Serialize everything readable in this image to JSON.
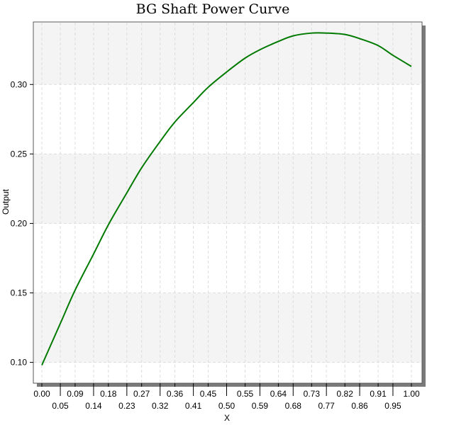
{
  "chart_data": {
    "type": "line",
    "title": "BG Shaft Power Curve",
    "xlabel": "X",
    "ylabel": "Output",
    "xlim": [
      0.0,
      1.0
    ],
    "ylim": [
      0.085,
      0.345
    ],
    "x_tick_values": [
      0.0,
      0.05,
      0.09,
      0.14,
      0.18,
      0.23,
      0.27,
      0.32,
      0.36,
      0.41,
      0.45,
      0.5,
      0.55,
      0.59,
      0.64,
      0.68,
      0.73,
      0.77,
      0.82,
      0.86,
      0.91,
      0.95,
      1.0
    ],
    "x_tick_labels": [
      "0.00",
      "0.05",
      "0.09",
      "0.14",
      "0.18",
      "0.23",
      "0.27",
      "0.32",
      "0.36",
      "0.41",
      "0.45",
      "0.50",
      "0.55",
      "0.59",
      "0.64",
      "0.68",
      "0.73",
      "0.77",
      "0.82",
      "0.86",
      "0.91",
      "0.95",
      "1.00"
    ],
    "y_tick_values": [
      0.1,
      0.15,
      0.2,
      0.25,
      0.3
    ],
    "y_tick_labels": [
      "0.10",
      "0.15",
      "0.20",
      "0.25",
      "0.30"
    ],
    "grid": true,
    "legend": "none",
    "series": [
      {
        "color": "#007a00",
        "x": [
          0.0,
          0.05,
          0.09,
          0.14,
          0.18,
          0.23,
          0.27,
          0.32,
          0.36,
          0.41,
          0.45,
          0.5,
          0.55,
          0.59,
          0.64,
          0.68,
          0.73,
          0.77,
          0.82,
          0.86,
          0.91,
          0.95,
          1.0
        ],
        "y": [
          0.098,
          0.128,
          0.152,
          0.178,
          0.199,
          0.222,
          0.24,
          0.259,
          0.273,
          0.287,
          0.298,
          0.309,
          0.319,
          0.325,
          0.331,
          0.335,
          0.337,
          0.337,
          0.336,
          0.333,
          0.328,
          0.321,
          0.313
        ]
      }
    ]
  }
}
